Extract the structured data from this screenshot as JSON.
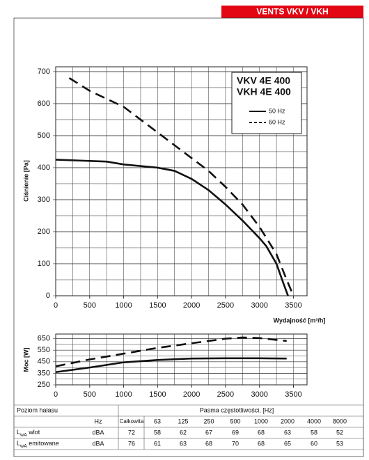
{
  "header": "VENTS VKV / VKH",
  "chart_data": [
    {
      "type": "line",
      "annotations": [
        "VKV 4E 400",
        "VKH 4E 400"
      ],
      "ylabel": "Ciśnienie [Pa]",
      "xlabel": "Wydajność [m³/h]",
      "xlim": [
        0,
        3700
      ],
      "xticks": [
        0,
        500,
        1000,
        1500,
        2000,
        2500,
        3000,
        3500
      ],
      "ylim": [
        0,
        715
      ],
      "yticks": [
        0,
        100,
        200,
        300,
        400,
        500,
        600,
        700
      ],
      "grid": true,
      "legend": "upper right",
      "series": [
        {
          "name": "50 Hz",
          "color": "#111111",
          "style": "solid",
          "x": [
            0,
            500,
            750,
            1000,
            1500,
            1750,
            2000,
            2250,
            2500,
            2750,
            3000,
            3100,
            3250,
            3350,
            3420
          ],
          "values": [
            425,
            421,
            419,
            410,
            400,
            390,
            365,
            330,
            285,
            235,
            180,
            155,
            100,
            40,
            0
          ]
        },
        {
          "name": "60 Hz",
          "color": "#111111",
          "style": "dashed",
          "x": [
            200,
            500,
            1000,
            1250,
            1500,
            1750,
            2000,
            2250,
            2500,
            2750,
            3000,
            3250,
            3400,
            3500
          ],
          "values": [
            680,
            640,
            590,
            550,
            510,
            470,
            430,
            390,
            340,
            285,
            215,
            130,
            50,
            0
          ]
        }
      ]
    },
    {
      "type": "line",
      "ylabel": "Moc [W]",
      "xlim": [
        0,
        3700
      ],
      "xticks": [
        0,
        500,
        1000,
        1500,
        2000,
        2500,
        3000,
        3500
      ],
      "ylim": [
        250,
        690
      ],
      "yticks": [
        250,
        350,
        450,
        550,
        650
      ],
      "grid": true,
      "series": [
        {
          "color": "#111111",
          "style": "solid",
          "x": [
            0,
            500,
            1000,
            1500,
            2000,
            2500,
            3000,
            3400
          ],
          "values": [
            360,
            400,
            445,
            465,
            478,
            480,
            480,
            478
          ]
        },
        {
          "color": "#111111",
          "style": "dashed",
          "x": [
            0,
            500,
            1000,
            1500,
            2000,
            2500,
            2750,
            3000,
            3400
          ],
          "values": [
            410,
            470,
            520,
            570,
            610,
            650,
            660,
            655,
            630
          ]
        }
      ]
    }
  ],
  "table": {
    "title": "Poziom hałasu",
    "band_title": "Pasma częstotliwości, [Hz]",
    "header": [
      "Hz",
      "Całkowita",
      "63",
      "125",
      "250",
      "500",
      "1000",
      "2000",
      "4000",
      "8000"
    ],
    "rows": [
      {
        "label": {
          "main": "L",
          "sub": "wA",
          "rest": " wlot"
        },
        "cells": [
          "dBA",
          "72",
          "58",
          "62",
          "67",
          "69",
          "68",
          "63",
          "58",
          "52"
        ]
      },
      {
        "label": {
          "main": "L",
          "sub": "wA",
          "rest": " emitowane"
        },
        "cells": [
          "dBA",
          "76",
          "61",
          "63",
          "68",
          "70",
          "68",
          "65",
          "60",
          "53"
        ]
      }
    ]
  }
}
